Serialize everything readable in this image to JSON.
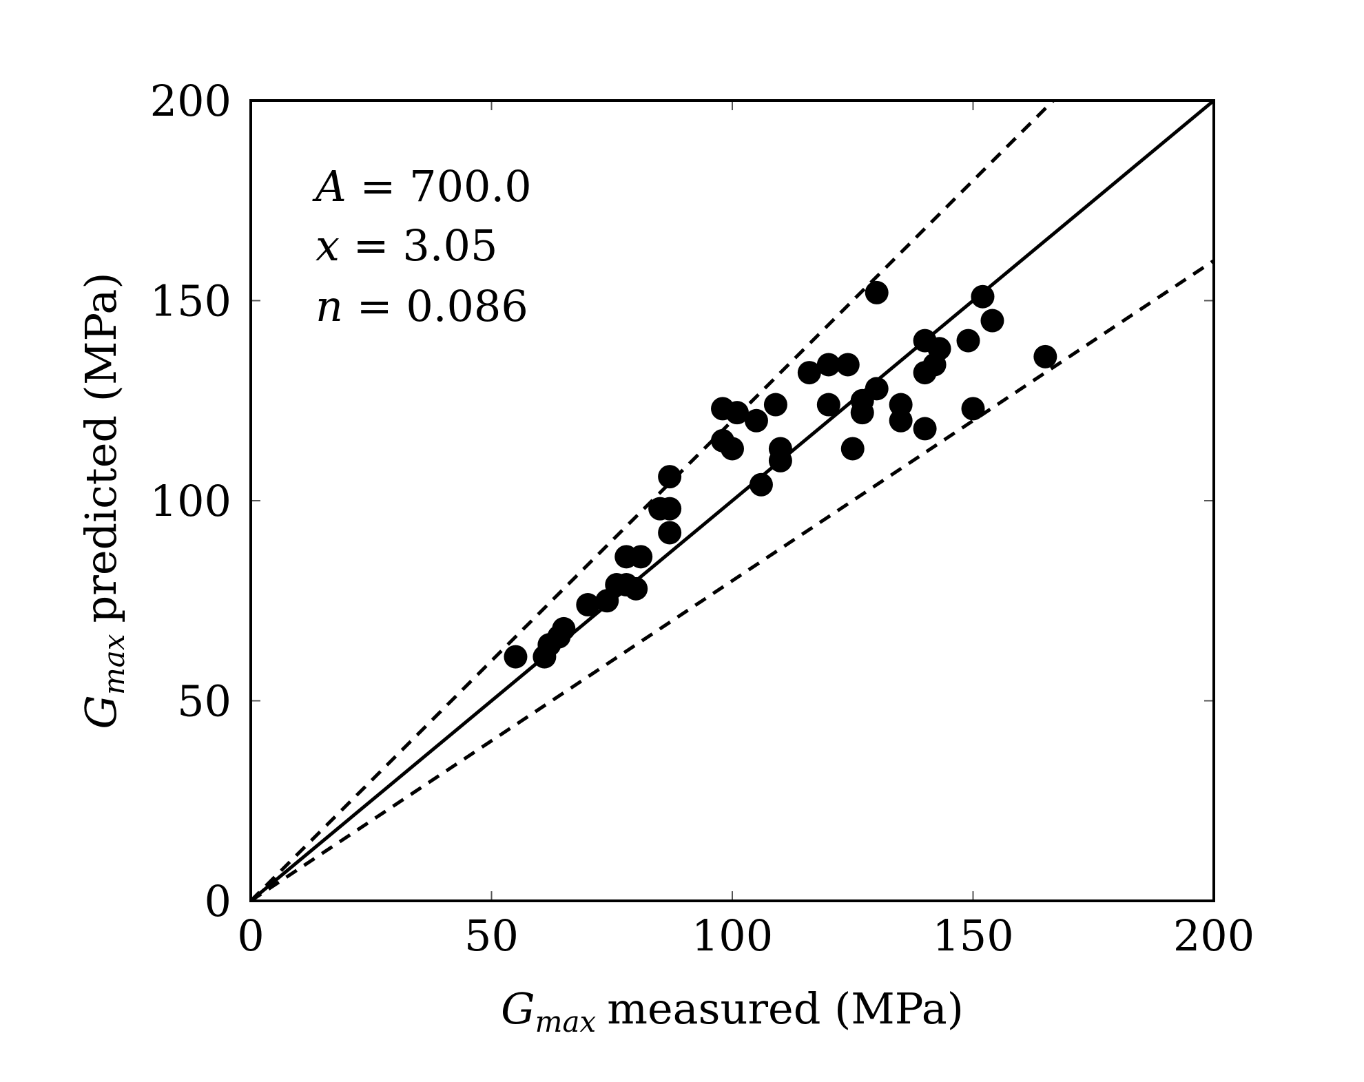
{
  "chart_data": {
    "type": "scatter",
    "title": "",
    "xlabel": {
      "symbol": "G",
      "subscript": "max",
      "text": "measured (MPa)"
    },
    "ylabel": {
      "symbol": "G",
      "subscript": "max",
      "text": "predicted (MPa)"
    },
    "xlim": [
      0,
      200
    ],
    "ylim": [
      0,
      200
    ],
    "xticks": [
      "0",
      "50",
      "100",
      "150",
      "200"
    ],
    "yticks": [
      "0",
      "50",
      "100",
      "150",
      "200"
    ],
    "grid": false,
    "annotations": [
      {
        "var": "A",
        "value": "700.0"
      },
      {
        "var": "x",
        "value": "3.05"
      },
      {
        "var": "n",
        "value": "0.086"
      }
    ],
    "lines": [
      {
        "name": "1:1 line",
        "style": "solid",
        "slope": 1.0
      },
      {
        "name": "upper bound",
        "style": "dashed",
        "slope": 1.2
      },
      {
        "name": "lower bound",
        "style": "dashed",
        "slope": 0.8
      }
    ],
    "series": [
      {
        "name": "data",
        "marker": "filled-circle",
        "points": [
          [
            55,
            61
          ],
          [
            61,
            61
          ],
          [
            62,
            64
          ],
          [
            64,
            66
          ],
          [
            65,
            68
          ],
          [
            70,
            74
          ],
          [
            74,
            75
          ],
          [
            76,
            79
          ],
          [
            78,
            79
          ],
          [
            78,
            86
          ],
          [
            80,
            78
          ],
          [
            81,
            86
          ],
          [
            85,
            98
          ],
          [
            87,
            92
          ],
          [
            87,
            98
          ],
          [
            87,
            106
          ],
          [
            98,
            123
          ],
          [
            98,
            115
          ],
          [
            100,
            113
          ],
          [
            101,
            122
          ],
          [
            105,
            120
          ],
          [
            106,
            104
          ],
          [
            109,
            124
          ],
          [
            110,
            113
          ],
          [
            110,
            110
          ],
          [
            116,
            132
          ],
          [
            120,
            134
          ],
          [
            120,
            124
          ],
          [
            124,
            134
          ],
          [
            125,
            113
          ],
          [
            127,
            122
          ],
          [
            127,
            125
          ],
          [
            130,
            128
          ],
          [
            130,
            152
          ],
          [
            135,
            124
          ],
          [
            135,
            120
          ],
          [
            140,
            140
          ],
          [
            140,
            132
          ],
          [
            140,
            118
          ],
          [
            142,
            134
          ],
          [
            143,
            138
          ],
          [
            149,
            140
          ],
          [
            150,
            123
          ],
          [
            152,
            151
          ],
          [
            154,
            145
          ],
          [
            165,
            136
          ]
        ]
      }
    ]
  }
}
